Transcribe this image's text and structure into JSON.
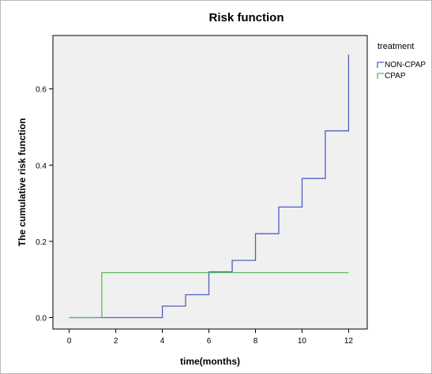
{
  "chart_data": {
    "type": "line",
    "step": true,
    "title": "Risk function",
    "xlabel": "time(months)",
    "ylabel": "The cumulative risk function",
    "xlim": [
      -0.7,
      12.8
    ],
    "ylim": [
      -0.03,
      0.74
    ],
    "xticks": [
      0,
      2,
      4,
      6,
      8,
      10,
      12
    ],
    "yticks": [
      0.0,
      0.2,
      0.4,
      0.6
    ],
    "ytick_labels": [
      "0.0",
      "0.2",
      "0.4",
      "0.6"
    ],
    "grid": false,
    "legend": {
      "title": "treatment",
      "placement": "right"
    },
    "series": [
      {
        "name": "NON-CPAP",
        "color": "#4f5fbf",
        "x": [
          0,
          4,
          5,
          6,
          7,
          8,
          9,
          10,
          11,
          12
        ],
        "y": [
          0.0,
          0.03,
          0.06,
          0.12,
          0.15,
          0.22,
          0.29,
          0.365,
          0.49,
          0.69
        ]
      },
      {
        "name": "CPAP",
        "color": "#5cb85c",
        "x": [
          0,
          1.4,
          12
        ],
        "y": [
          0.0,
          0.118,
          0.118
        ]
      }
    ]
  }
}
